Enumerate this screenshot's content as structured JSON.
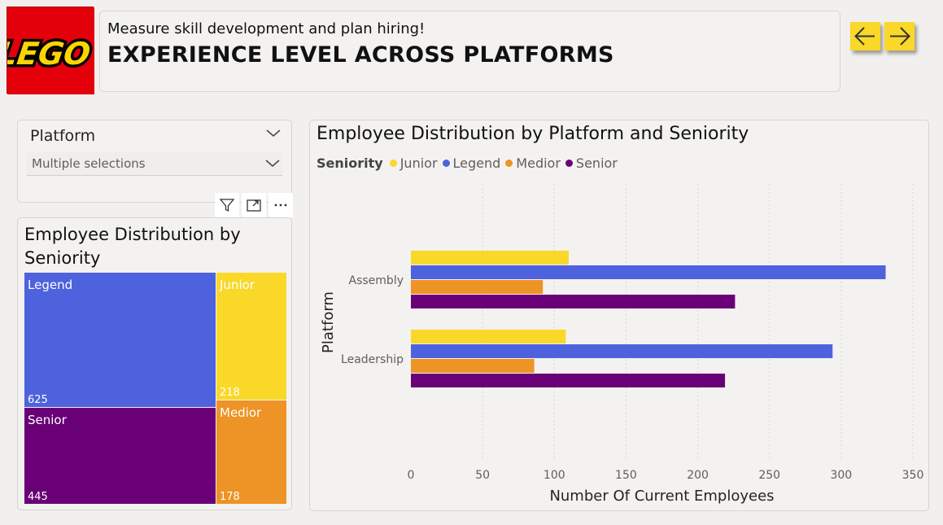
{
  "header": {
    "logo_text": "LEGO",
    "subtitle": "Measure skill development and plan hiring!",
    "title": "EXPERIENCE LEVEL ACROSS PLATFORMS"
  },
  "nav": {
    "back_icon": "arrow-left-icon",
    "forward_icon": "arrow-right-icon",
    "button_color": "#f9d82a"
  },
  "slicer": {
    "title": "Platform",
    "value": "Multiple selections"
  },
  "toolbar": {
    "icons": [
      "filter-icon",
      "focus-mode-icon",
      "more-options-icon"
    ]
  },
  "treemap": {
    "title": "Employee Distribution by Seniority",
    "tiles": [
      {
        "label": "Legend",
        "value": "625",
        "color": "#4e62dd"
      },
      {
        "label": "Junior",
        "value": "218",
        "color": "#f9d82a"
      },
      {
        "label": "Senior",
        "value": "445",
        "color": "#6a0078"
      },
      {
        "label": "Medior",
        "value": "178",
        "color": "#ee9325"
      }
    ]
  },
  "barchart": {
    "title": "Employee Distribution by Platform and Seniority",
    "legend_title": "Seniority",
    "legend": [
      {
        "name": "Junior",
        "color": "#f9d82a"
      },
      {
        "name": "Legend",
        "color": "#4e62dd"
      },
      {
        "name": "Medior",
        "color": "#ee9325"
      },
      {
        "name": "Senior",
        "color": "#6a0078"
      }
    ]
  },
  "chart_data": {
    "type": "bar",
    "orientation": "horizontal",
    "title": "Employee Distribution by Platform and Seniority",
    "xlabel": "Number Of Current Employees",
    "ylabel": "Platform",
    "categories": [
      "Assembly",
      "Leadership"
    ],
    "series": [
      {
        "name": "Junior",
        "color": "#f9d82a",
        "values": [
          110,
          108
        ]
      },
      {
        "name": "Legend",
        "color": "#4e62dd",
        "values": [
          331,
          294
        ]
      },
      {
        "name": "Medior",
        "color": "#ee9325",
        "values": [
          92,
          86
        ]
      },
      {
        "name": "Senior",
        "color": "#6a0078",
        "values": [
          226,
          219
        ]
      }
    ],
    "xlim": [
      0,
      350
    ],
    "xticks": [
      0,
      50,
      100,
      150,
      200,
      250,
      300,
      350
    ],
    "grid": true,
    "legend_position": "top-left"
  }
}
